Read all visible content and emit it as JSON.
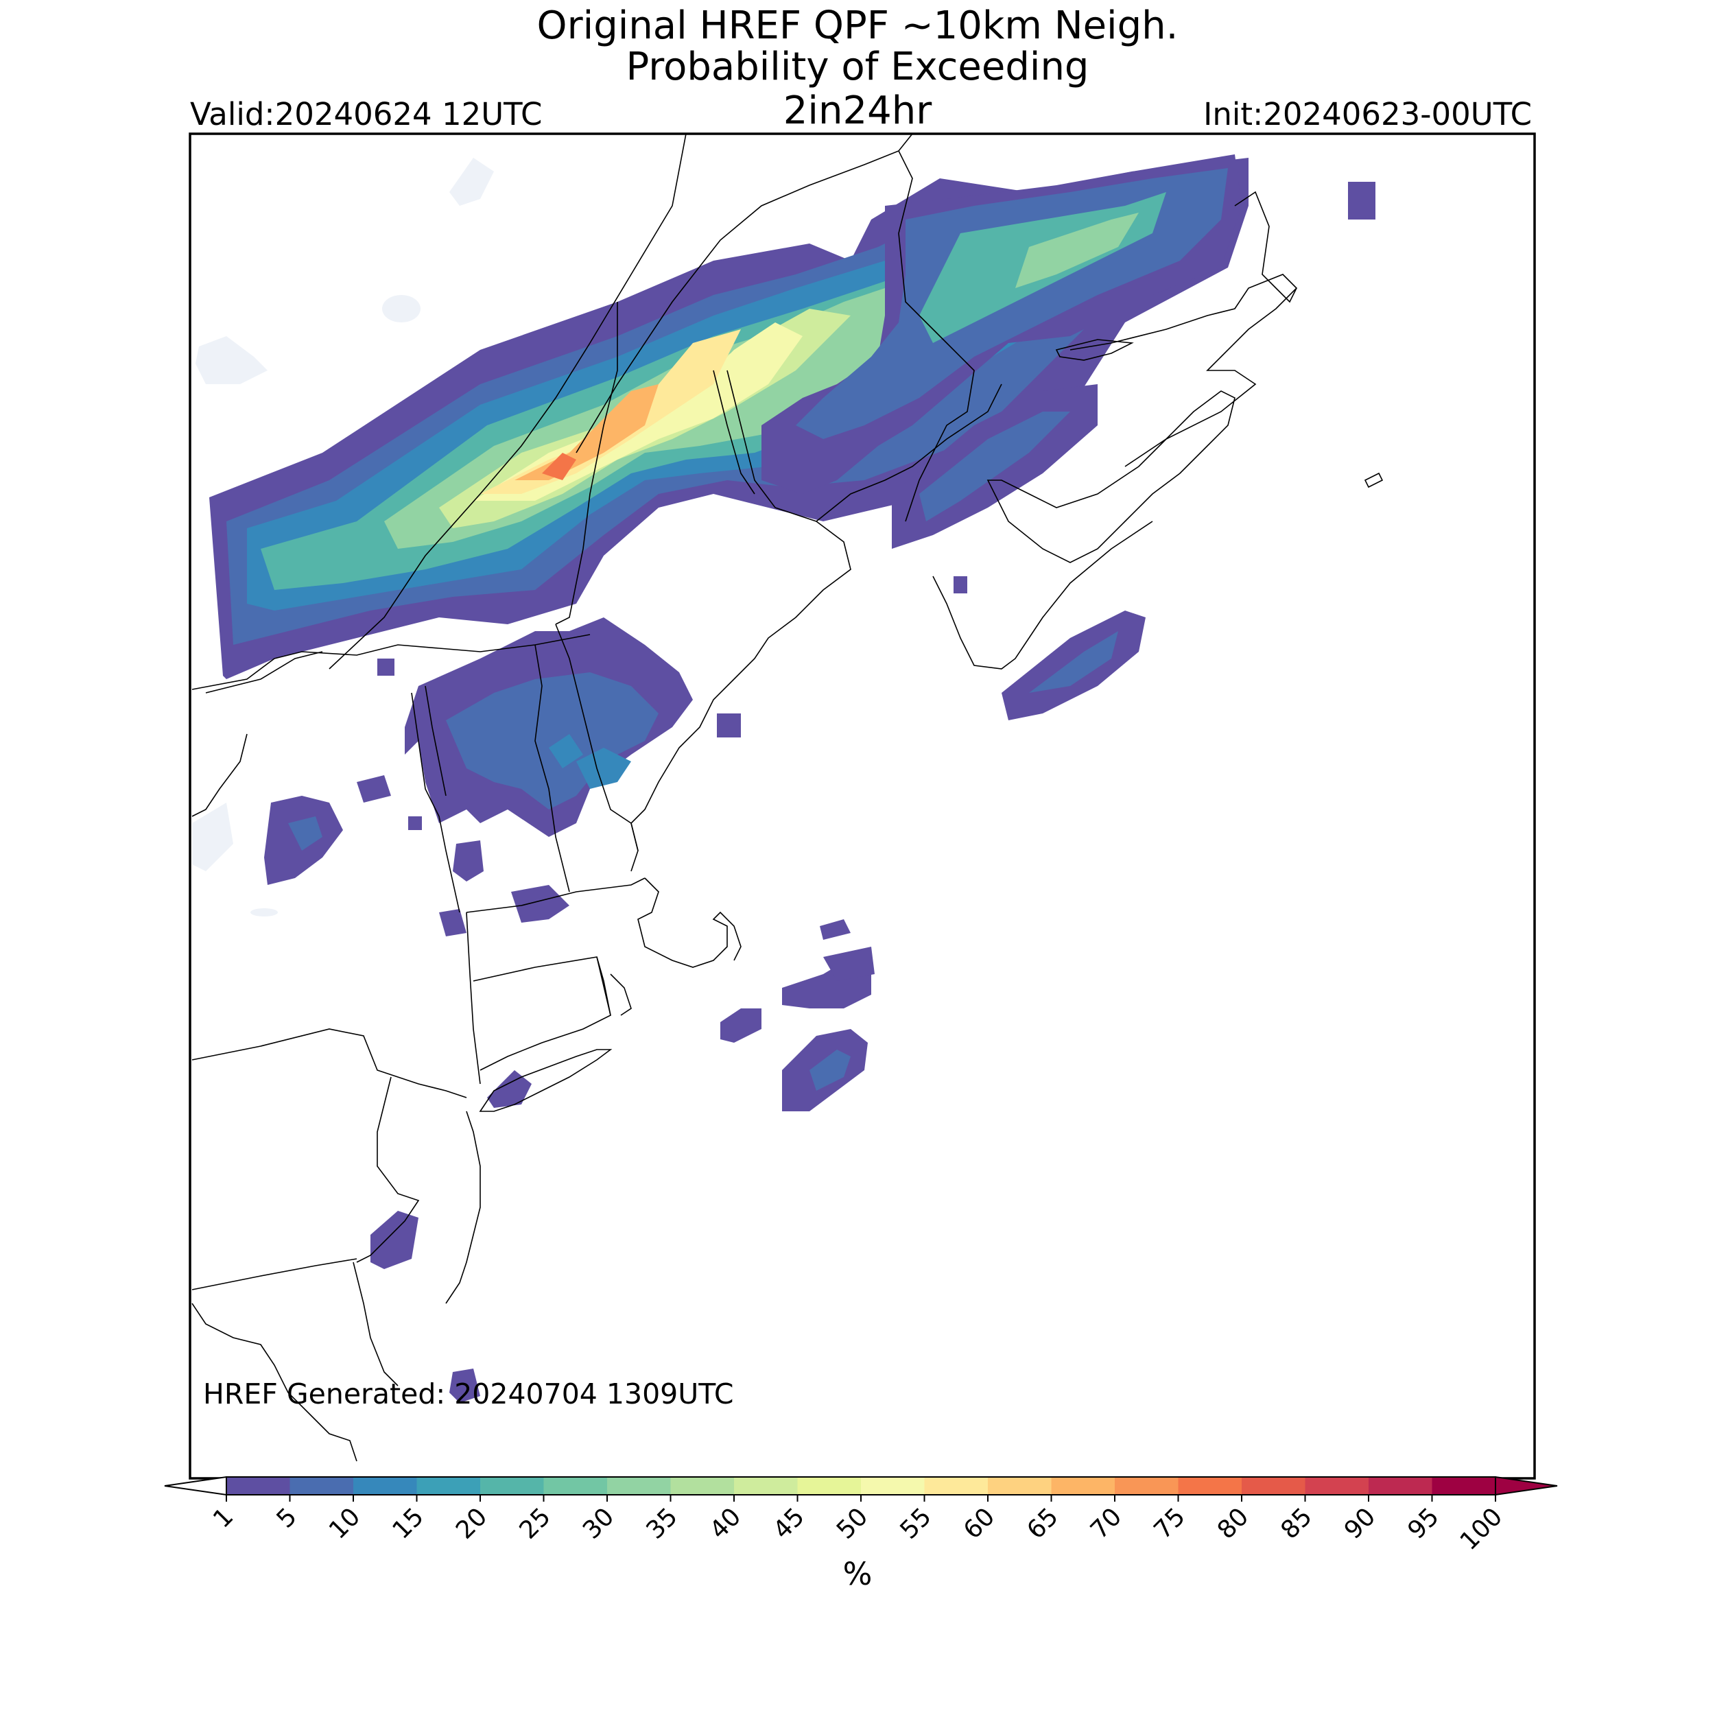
{
  "title": {
    "line1": "Original HREF QPF ~10km Neigh.",
    "line2": "Probability of Exceeding",
    "line3": "2in24hr"
  },
  "valid": "Valid:20240624 12UTC",
  "init": "Init:20240623-00UTC",
  "generated": "HREF Generated: 20240704 1309UTC",
  "colorbar": {
    "unit": "%",
    "ticks": [
      "1",
      "5",
      "10",
      "15",
      "20",
      "25",
      "30",
      "35",
      "40",
      "45",
      "50",
      "55",
      "60",
      "65",
      "70",
      "75",
      "80",
      "85",
      "90",
      "95",
      "100"
    ],
    "colors": [
      "#5e4fa2",
      "#4a6db0",
      "#3688bb",
      "#3ca0b7",
      "#55b5a9",
      "#72c6a4",
      "#92d3a3",
      "#b2e09e",
      "#cfec9d",
      "#e6f598",
      "#f5f9ad",
      "#fee99a",
      "#fed280",
      "#fdb566",
      "#f99656",
      "#f47548",
      "#e55a49",
      "#d34250",
      "#bd2951",
      "#9e0142"
    ],
    "under_color": "#ffffff",
    "over_color": "#9e0142"
  },
  "map_data": {
    "region": "Northeastern United States and southeastern Canada",
    "field": "Probability of exceeding 2 in in 24 hr (%)",
    "max_probability": "~70",
    "features": [
      "state boundaries",
      "coastlines",
      "lakes"
    ]
  }
}
